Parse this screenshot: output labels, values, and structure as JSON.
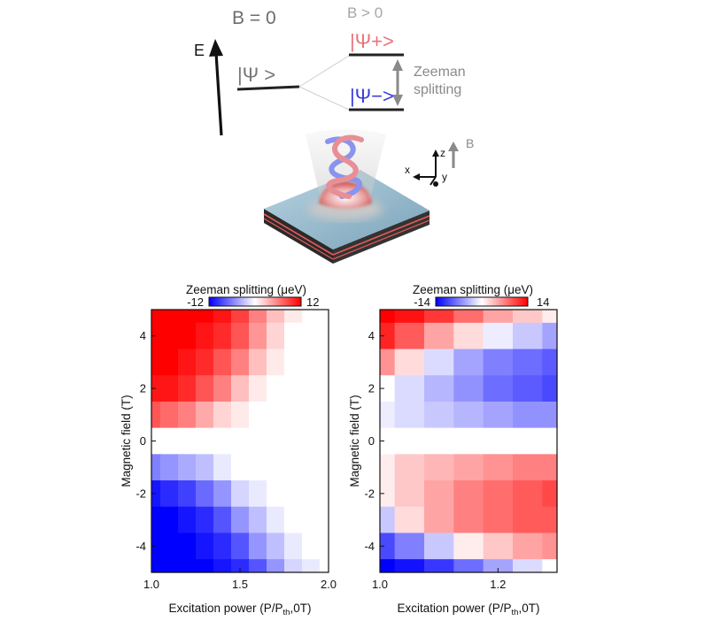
{
  "schematic": {
    "b_zero_label": "B = 0",
    "b_positive_label": "B > 0",
    "energy_axis_label": "E",
    "state_label": "|Ψ >",
    "state_plus_label": "|Ψ+>",
    "state_minus_label": "|Ψ−>",
    "zeeman_label_line1": "Zeeman",
    "zeeman_label_line2": "splitting",
    "axis_z": "z",
    "axis_x": "x",
    "axis_y": "y",
    "field_label": "B",
    "colors": {
      "plus": "#e8737a",
      "minus": "#3b3bdc",
      "level": "#222222",
      "grey": "#8a8a8a"
    }
  },
  "chart_data": [
    {
      "type": "heatmap",
      "colorbar_title": "Zeeman splitting (μeV)",
      "colorbar_min_label": "-12",
      "colorbar_max_label": "12",
      "color_range": [
        -12,
        12
      ],
      "colormap": [
        "#0000ff",
        "#ffffff",
        "#ff0000"
      ],
      "xlabel": "Excitation power (P/Pth,0T)",
      "ylabel": "Magnetic field (T)",
      "xlim": [
        1.0,
        2.0
      ],
      "ylim": [
        -5,
        5
      ],
      "xticks": [
        1.0,
        1.5,
        2.0
      ],
      "xtick_labels": [
        "1.0",
        "1.5",
        "2.0"
      ],
      "yticks": [
        -4,
        -2,
        0,
        2,
        4
      ],
      "ytick_labels": [
        "-4",
        "-2",
        "0",
        "2",
        "4"
      ],
      "x": [
        1.0,
        1.1,
        1.2,
        1.3,
        1.4,
        1.5,
        1.6,
        1.7,
        1.8,
        1.9,
        2.0
      ],
      "y": [
        5,
        4,
        3,
        2,
        1,
        0,
        -1,
        -2,
        -3,
        -4,
        -5
      ],
      "z": [
        [
          12,
          12,
          12,
          12,
          11,
          9,
          6,
          3,
          1,
          0,
          0
        ],
        [
          12,
          12,
          12,
          11,
          10,
          8,
          5,
          2,
          0,
          0,
          0
        ],
        [
          12,
          12,
          11,
          10,
          8,
          6,
          3,
          1,
          0,
          0,
          0
        ],
        [
          11,
          11,
          10,
          8,
          6,
          3,
          1,
          0,
          0,
          0,
          0
        ],
        [
          8,
          7,
          6,
          4,
          2,
          1,
          0,
          0,
          0,
          0,
          0
        ],
        [
          0,
          0,
          0,
          0,
          0,
          0,
          0,
          0,
          0,
          0,
          0
        ],
        [
          -6,
          -5,
          -4,
          -3,
          -1,
          0,
          0,
          0,
          0,
          0,
          0
        ],
        [
          -11,
          -10,
          -9,
          -7,
          -5,
          -2,
          -1,
          0,
          0,
          0,
          0
        ],
        [
          -12,
          -12,
          -11,
          -10,
          -8,
          -5,
          -3,
          -1,
          0,
          0,
          0
        ],
        [
          -12,
          -12,
          -12,
          -11,
          -10,
          -8,
          -5,
          -3,
          -1,
          0,
          0
        ],
        [
          -12,
          -12,
          -12,
          -12,
          -11,
          -10,
          -8,
          -5,
          -2,
          -1,
          0
        ]
      ]
    },
    {
      "type": "heatmap",
      "colorbar_title": "Zeeman splitting (μeV)",
      "colorbar_min_label": "-14",
      "colorbar_max_label": "14",
      "color_range": [
        -14,
        14
      ],
      "colormap": [
        "#0000ff",
        "#ffffff",
        "#ff0000"
      ],
      "xlabel": "Excitation power (P/Pth,0T)",
      "ylabel": "Magnetic field (T)",
      "xlim": [
        1.0,
        1.3
      ],
      "ylim": [
        -5,
        5
      ],
      "xticks": [
        1.0,
        1.2
      ],
      "xtick_labels": [
        "1.0",
        "1.2"
      ],
      "yticks": [
        -4,
        -2,
        0,
        2,
        4
      ],
      "ytick_labels": [
        "-4",
        "-2",
        "0",
        "2",
        "4"
      ],
      "x": [
        1.0,
        1.05,
        1.1,
        1.15,
        1.2,
        1.25,
        1.3
      ],
      "y": [
        5,
        4,
        3,
        2,
        1,
        0,
        -1,
        -2,
        -3,
        -4,
        -5
      ],
      "z": [
        [
          14,
          13,
          11,
          8,
          5,
          3,
          1
        ],
        [
          12,
          9,
          5,
          2,
          -1,
          -3,
          -5
        ],
        [
          6,
          2,
          -2,
          -5,
          -7,
          -8,
          -9
        ],
        [
          0,
          -2,
          -4,
          -6,
          -8,
          -9,
          -10
        ],
        [
          -1,
          -2,
          -3,
          -4,
          -5,
          -6,
          -6
        ],
        [
          0,
          0,
          0,
          0,
          0,
          0,
          0
        ],
        [
          1,
          3,
          4,
          5,
          6,
          7,
          7
        ],
        [
          1,
          3,
          5,
          7,
          8,
          9,
          10
        ],
        [
          -3,
          2,
          5,
          7,
          8,
          9,
          9
        ],
        [
          -10,
          -7,
          -3,
          1,
          3,
          5,
          6
        ],
        [
          -14,
          -13,
          -11,
          -8,
          -5,
          -2,
          0
        ]
      ]
    }
  ]
}
